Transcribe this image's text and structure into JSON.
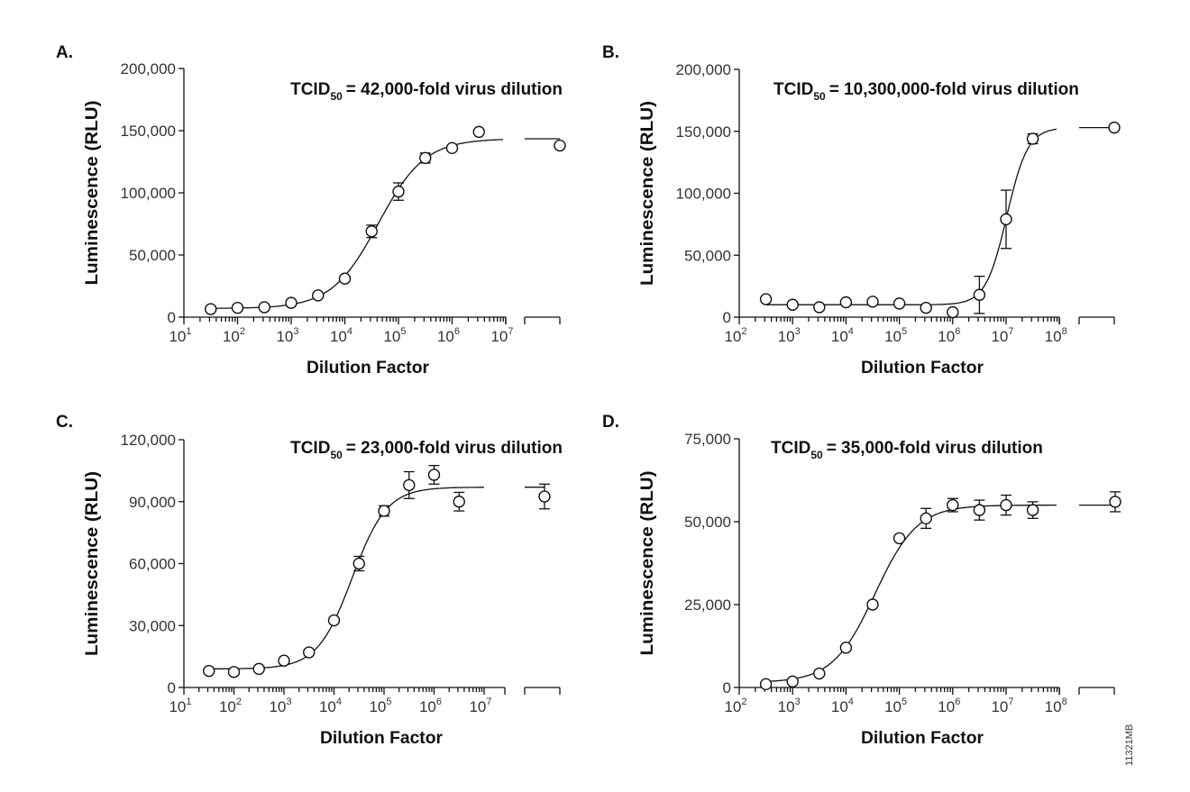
{
  "chart_data": [
    {
      "panel": "A.",
      "type": "scatter",
      "annotation": {
        "prefix": "TCID",
        "subscript": "50",
        "text": "= 42,000-fold virus dilution"
      },
      "xlabel": "Dilution Factor",
      "ylabel": "Luminescence (RLU)",
      "xscale": "log",
      "x_axis_break": true,
      "xlim": [
        10,
        10000000
      ],
      "x_ticks": [
        {
          "base": "10",
          "exp": "1"
        },
        {
          "base": "10",
          "exp": "2"
        },
        {
          "base": "10",
          "exp": "3"
        },
        {
          "base": "10",
          "exp": "4"
        },
        {
          "base": "10",
          "exp": "5"
        },
        {
          "base": "10",
          "exp": "6"
        },
        {
          "base": "10",
          "exp": "7"
        }
      ],
      "ylim": [
        0,
        200000
      ],
      "y_ticks": [
        "0",
        "50,000",
        "100,000",
        "150,000",
        "200,000"
      ],
      "y_tick_values": [
        0,
        50000,
        100000,
        150000,
        200000
      ],
      "grid": false,
      "x": [
        31.6,
        100,
        316,
        1000,
        3162,
        10000,
        31623,
        100000,
        316228,
        1000000,
        3162278
      ],
      "y": [
        6500,
        7500,
        8000,
        11500,
        17500,
        31000,
        69000,
        101000,
        128000,
        136000,
        149000
      ],
      "error": [
        0,
        0,
        0,
        0,
        0,
        0,
        5000,
        7000,
        4000,
        0,
        0
      ],
      "control_point": {
        "y": 138000,
        "error": 0
      },
      "fit": {
        "bottom": 7000,
        "top": 143500,
        "ec50": 42000,
        "hill": 1.0
      }
    },
    {
      "panel": "B.",
      "type": "scatter",
      "annotation": {
        "prefix": "TCID",
        "subscript": "50",
        "text": "= 10,300,000-fold virus dilution"
      },
      "xlabel": "Dilution Factor",
      "ylabel": "Luminescence (RLU)",
      "xscale": "log",
      "x_axis_break": true,
      "xlim": [
        100,
        100000000
      ],
      "x_ticks": [
        {
          "base": "10",
          "exp": "2"
        },
        {
          "base": "10",
          "exp": "3"
        },
        {
          "base": "10",
          "exp": "4"
        },
        {
          "base": "10",
          "exp": "5"
        },
        {
          "base": "10",
          "exp": "6"
        },
        {
          "base": "10",
          "exp": "7"
        },
        {
          "base": "10",
          "exp": "8"
        }
      ],
      "ylim": [
        0,
        200000
      ],
      "y_ticks": [
        "0",
        "50,000",
        "100,000",
        "150,000",
        "200,000"
      ],
      "y_tick_values": [
        0,
        50000,
        100000,
        150000,
        200000
      ],
      "grid": false,
      "x": [
        316,
        1000,
        3162,
        10000,
        31623,
        100000,
        316228,
        1000000,
        3162278,
        10000000,
        31622777
      ],
      "y": [
        14500,
        10000,
        8000,
        12000,
        12500,
        11000,
        7500,
        4000,
        18000,
        79000,
        144000
      ],
      "error": [
        0,
        0,
        0,
        0,
        0,
        0,
        0,
        0,
        15000,
        23500,
        4000
      ],
      "control_point": {
        "y": 153000,
        "error": 0
      },
      "fit": {
        "bottom": 10000,
        "top": 153000,
        "ec50": 10300000,
        "hill": 2.2
      }
    },
    {
      "panel": "C.",
      "type": "scatter",
      "annotation": {
        "prefix": "TCID",
        "subscript": "50",
        "text": "= 23,000-fold virus dilution"
      },
      "xlabel": "Dilution Factor",
      "ylabel": "Luminescence (RLU)",
      "xscale": "log",
      "x_axis_break": true,
      "xlim": [
        10,
        31622777
      ],
      "x_ticks": [
        {
          "base": "10",
          "exp": "1"
        },
        {
          "base": "10",
          "exp": "2"
        },
        {
          "base": "10",
          "exp": "3"
        },
        {
          "base": "10",
          "exp": "4"
        },
        {
          "base": "10",
          "exp": "5"
        },
        {
          "base": "10",
          "exp": "6"
        },
        {
          "base": "10",
          "exp": "7"
        }
      ],
      "ylim": [
        0,
        120000
      ],
      "y_ticks": [
        "0",
        "30,000",
        "60,000",
        "90,000",
        "120,000"
      ],
      "y_tick_values": [
        0,
        30000,
        60000,
        90000,
        120000
      ],
      "grid": false,
      "x": [
        31.6,
        100,
        316,
        1000,
        3162,
        10000,
        31623,
        100000,
        316228,
        1000000,
        3162278
      ],
      "y": [
        8000,
        7500,
        9000,
        13000,
        17000,
        32500,
        60000,
        85500,
        98000,
        103000,
        90000
      ],
      "error": [
        0,
        0,
        0,
        0,
        0,
        0,
        3500,
        2500,
        6500,
        4500,
        4500
      ],
      "control_point": {
        "y": 92500,
        "error": 6000
      },
      "fit": {
        "bottom": 9000,
        "top": 97000,
        "ec50": 23000,
        "hill": 1.25
      }
    },
    {
      "panel": "D.",
      "type": "scatter",
      "annotation": {
        "prefix": "TCID",
        "subscript": "50",
        "text": "= 35,000-fold virus dilution"
      },
      "xlabel": "Dilution Factor",
      "ylabel": "Luminescence (RLU)",
      "xscale": "log",
      "x_axis_break": true,
      "xlim": [
        100,
        100000000
      ],
      "x_ticks": [
        {
          "base": "10",
          "exp": "2"
        },
        {
          "base": "10",
          "exp": "3"
        },
        {
          "base": "10",
          "exp": "4"
        },
        {
          "base": "10",
          "exp": "5"
        },
        {
          "base": "10",
          "exp": "6"
        },
        {
          "base": "10",
          "exp": "7"
        },
        {
          "base": "10",
          "exp": "8"
        }
      ],
      "ylim": [
        0,
        75000
      ],
      "y_ticks": [
        "0",
        "25,000",
        "50,000",
        "75,000"
      ],
      "y_tick_values": [
        0,
        25000,
        50000,
        75000
      ],
      "grid": false,
      "x": [
        316,
        1000,
        3162,
        10000,
        31623,
        100000,
        316228,
        1000000,
        3162278,
        10000000,
        31622777
      ],
      "y": [
        1000,
        1800,
        4200,
        12000,
        25000,
        45000,
        51000,
        55000,
        53500,
        55000,
        53500
      ],
      "error": [
        0,
        0,
        0,
        0,
        0,
        0,
        3000,
        2000,
        3000,
        3000,
        2500
      ],
      "control_point": {
        "y": 56000,
        "error": 3000
      },
      "fit": {
        "bottom": 1500,
        "top": 55000,
        "ec50": 35000,
        "hill": 1.1
      }
    }
  ],
  "figure_code": "11321MB"
}
